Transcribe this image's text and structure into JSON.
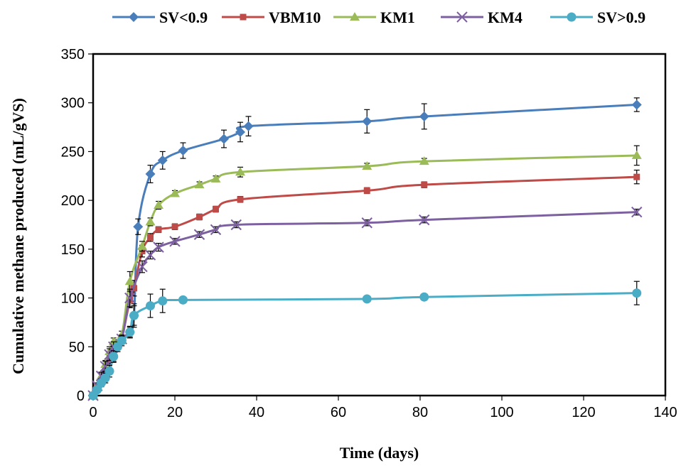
{
  "chart_data": {
    "type": "line",
    "title": "",
    "xlabel": "Time (days)",
    "ylabel": "Cumulative methane produced (mL/gVS)",
    "xlim": [
      0,
      140
    ],
    "ylim": [
      0,
      350
    ],
    "xticks": [
      0,
      20,
      40,
      60,
      80,
      100,
      120,
      140
    ],
    "yticks": [
      0,
      50,
      100,
      150,
      200,
      250,
      300,
      350
    ],
    "grid": false,
    "legend_position": "top",
    "series": [
      {
        "name": "SV<0.9",
        "color": "#4A7EBB",
        "marker": "diamond",
        "points": [
          {
            "x": 0,
            "y": 0,
            "err": 0
          },
          {
            "x": 1,
            "y": 8,
            "err": 3
          },
          {
            "x": 2,
            "y": 16,
            "err": 6
          },
          {
            "x": 3,
            "y": 25,
            "err": 8
          },
          {
            "x": 4,
            "y": 35,
            "err": 10
          },
          {
            "x": 5,
            "y": 45,
            "err": 10
          },
          {
            "x": 6,
            "y": 52,
            "err": 5
          },
          {
            "x": 7,
            "y": 57,
            "err": 4
          },
          {
            "x": 9,
            "y": 65,
            "err": 5
          },
          {
            "x": 10,
            "y": 82,
            "err": 10
          },
          {
            "x": 11,
            "y": 173,
            "err": 8
          },
          {
            "x": 14,
            "y": 227,
            "err": 9
          },
          {
            "x": 17,
            "y": 241,
            "err": 9
          },
          {
            "x": 22,
            "y": 251,
            "err": 8
          },
          {
            "x": 32,
            "y": 263,
            "err": 9
          },
          {
            "x": 36,
            "y": 270,
            "err": 10
          },
          {
            "x": 38,
            "y": 276,
            "err": 10
          },
          {
            "x": 67,
            "y": 281,
            "err": 12
          },
          {
            "x": 81,
            "y": 286,
            "err": 13
          },
          {
            "x": 133,
            "y": 298,
            "err": 7
          }
        ]
      },
      {
        "name": "VBM10",
        "color": "#BE4B48",
        "marker": "square",
        "points": [
          {
            "x": 0,
            "y": 0,
            "err": 0
          },
          {
            "x": 1,
            "y": 8,
            "err": 2
          },
          {
            "x": 2,
            "y": 16,
            "err": 3
          },
          {
            "x": 3,
            "y": 26,
            "err": 4
          },
          {
            "x": 4,
            "y": 37,
            "err": 4
          },
          {
            "x": 5,
            "y": 46,
            "err": 4
          },
          {
            "x": 6,
            "y": 53,
            "err": 3
          },
          {
            "x": 7,
            "y": 58,
            "err": 3
          },
          {
            "x": 9,
            "y": 98,
            "err": 8
          },
          {
            "x": 10,
            "y": 110,
            "err": 8
          },
          {
            "x": 12,
            "y": 148,
            "err": 6
          },
          {
            "x": 14,
            "y": 162,
            "err": 4
          },
          {
            "x": 16,
            "y": 170,
            "err": 3
          },
          {
            "x": 20,
            "y": 173,
            "err": 3
          },
          {
            "x": 26,
            "y": 183,
            "err": 3
          },
          {
            "x": 30,
            "y": 191,
            "err": 3
          },
          {
            "x": 36,
            "y": 201,
            "err": 3
          },
          {
            "x": 67,
            "y": 210,
            "err": 3
          },
          {
            "x": 81,
            "y": 216,
            "err": 3
          },
          {
            "x": 133,
            "y": 224,
            "err": 7
          }
        ]
      },
      {
        "name": "KM1",
        "color": "#9BBB59",
        "marker": "triangle",
        "points": [
          {
            "x": 0,
            "y": 0,
            "err": 0
          },
          {
            "x": 1,
            "y": 10,
            "err": 2
          },
          {
            "x": 2,
            "y": 20,
            "err": 3
          },
          {
            "x": 3,
            "y": 32,
            "err": 4
          },
          {
            "x": 4,
            "y": 45,
            "err": 5
          },
          {
            "x": 5,
            "y": 55,
            "err": 4
          },
          {
            "x": 7,
            "y": 62,
            "err": 4
          },
          {
            "x": 9,
            "y": 117,
            "err": 10
          },
          {
            "x": 12,
            "y": 153,
            "err": 5
          },
          {
            "x": 14,
            "y": 178,
            "err": 4
          },
          {
            "x": 16,
            "y": 195,
            "err": 4
          },
          {
            "x": 20,
            "y": 207,
            "err": 3
          },
          {
            "x": 26,
            "y": 216,
            "err": 3
          },
          {
            "x": 30,
            "y": 222,
            "err": 3
          },
          {
            "x": 36,
            "y": 229,
            "err": 5
          },
          {
            "x": 67,
            "y": 235,
            "err": 3
          },
          {
            "x": 81,
            "y": 240,
            "err": 3
          },
          {
            "x": 133,
            "y": 246,
            "err": 10
          }
        ]
      },
      {
        "name": "KM4",
        "color": "#7D60A0",
        "marker": "x",
        "points": [
          {
            "x": 0,
            "y": 0,
            "err": 0
          },
          {
            "x": 1,
            "y": 10,
            "err": 3
          },
          {
            "x": 2,
            "y": 20,
            "err": 4
          },
          {
            "x": 3,
            "y": 30,
            "err": 5
          },
          {
            "x": 4,
            "y": 42,
            "err": 6
          },
          {
            "x": 5,
            "y": 50,
            "err": 5
          },
          {
            "x": 7,
            "y": 58,
            "err": 4
          },
          {
            "x": 9,
            "y": 100,
            "err": 9
          },
          {
            "x": 12,
            "y": 132,
            "err": 6
          },
          {
            "x": 14,
            "y": 144,
            "err": 4
          },
          {
            "x": 16,
            "y": 152,
            "err": 4
          },
          {
            "x": 20,
            "y": 158,
            "err": 3
          },
          {
            "x": 26,
            "y": 165,
            "err": 3
          },
          {
            "x": 30,
            "y": 170,
            "err": 3
          },
          {
            "x": 35,
            "y": 175,
            "err": 3
          },
          {
            "x": 67,
            "y": 177,
            "err": 3
          },
          {
            "x": 81,
            "y": 180,
            "err": 3
          },
          {
            "x": 133,
            "y": 188,
            "err": 3
          }
        ]
      },
      {
        "name": "SV>0.9",
        "color": "#4BACC6",
        "marker": "circle",
        "points": [
          {
            "x": 0,
            "y": 0,
            "err": 0
          },
          {
            "x": 1,
            "y": 6,
            "err": 3
          },
          {
            "x": 2,
            "y": 13,
            "err": 4
          },
          {
            "x": 3,
            "y": 18,
            "err": 5
          },
          {
            "x": 4,
            "y": 25,
            "err": 6
          },
          {
            "x": 5,
            "y": 40,
            "err": 6
          },
          {
            "x": 6,
            "y": 50,
            "err": 5
          },
          {
            "x": 7,
            "y": 56,
            "err": 5
          },
          {
            "x": 9,
            "y": 65,
            "err": 6
          },
          {
            "x": 10,
            "y": 82,
            "err": 12
          },
          {
            "x": 14,
            "y": 92,
            "err": 12
          },
          {
            "x": 17,
            "y": 97,
            "err": 12
          },
          {
            "x": 22,
            "y": 98,
            "err": 3
          },
          {
            "x": 67,
            "y": 99,
            "err": 3
          },
          {
            "x": 81,
            "y": 101,
            "err": 3
          },
          {
            "x": 133,
            "y": 105,
            "err": 12
          }
        ]
      }
    ]
  }
}
